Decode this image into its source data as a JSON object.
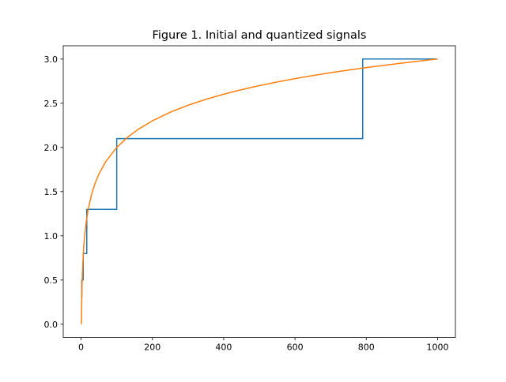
{
  "figure": {
    "title": "Figure 1. Initial and quantized signals"
  },
  "chart_data": {
    "type": "line",
    "title": "Figure 1. Initial and quantized signals",
    "xlabel": "",
    "ylabel": "",
    "xlim": [
      -50,
      1050
    ],
    "ylim": [
      -0.15,
      3.15
    ],
    "xticks": [
      0,
      200,
      400,
      600,
      800,
      1000
    ],
    "yticks": [
      0.0,
      0.5,
      1.0,
      1.5,
      2.0,
      2.5,
      3.0
    ],
    "xtick_labels": [
      "0",
      "200",
      "400",
      "600",
      "800",
      "1000"
    ],
    "ytick_labels": [
      "0.0",
      "0.5",
      "1.0",
      "1.5",
      "2.0",
      "2.5",
      "3.0"
    ],
    "grid": false,
    "legend": false,
    "series": [
      {
        "color": "#1f77b4",
        "style": "step",
        "x": [
          1,
          2,
          2,
          6,
          6,
          16,
          16,
          100,
          100,
          790,
          790,
          1000
        ],
        "y": [
          0.3,
          0.3,
          0.5,
          0.5,
          0.8,
          0.8,
          1.3,
          1.3,
          2.1,
          2.1,
          3.0,
          3.0
        ]
      },
      {
        "color": "#ff7f0e",
        "style": "line",
        "x": [
          1,
          1.5,
          2,
          3,
          4,
          5,
          7,
          10,
          15,
          20,
          30,
          40,
          50,
          70,
          100,
          130,
          160,
          200,
          250,
          300,
          350,
          400,
          450,
          500,
          550,
          600,
          650,
          700,
          750,
          800,
          850,
          900,
          950,
          1000
        ],
        "y": [
          0.0,
          0.176,
          0.301,
          0.477,
          0.602,
          0.699,
          0.845,
          1.0,
          1.176,
          1.301,
          1.477,
          1.602,
          1.699,
          1.845,
          2.0,
          2.114,
          2.204,
          2.301,
          2.398,
          2.477,
          2.544,
          2.602,
          2.653,
          2.699,
          2.74,
          2.778,
          2.813,
          2.845,
          2.875,
          2.903,
          2.929,
          2.954,
          2.978,
          3.0
        ]
      }
    ]
  }
}
